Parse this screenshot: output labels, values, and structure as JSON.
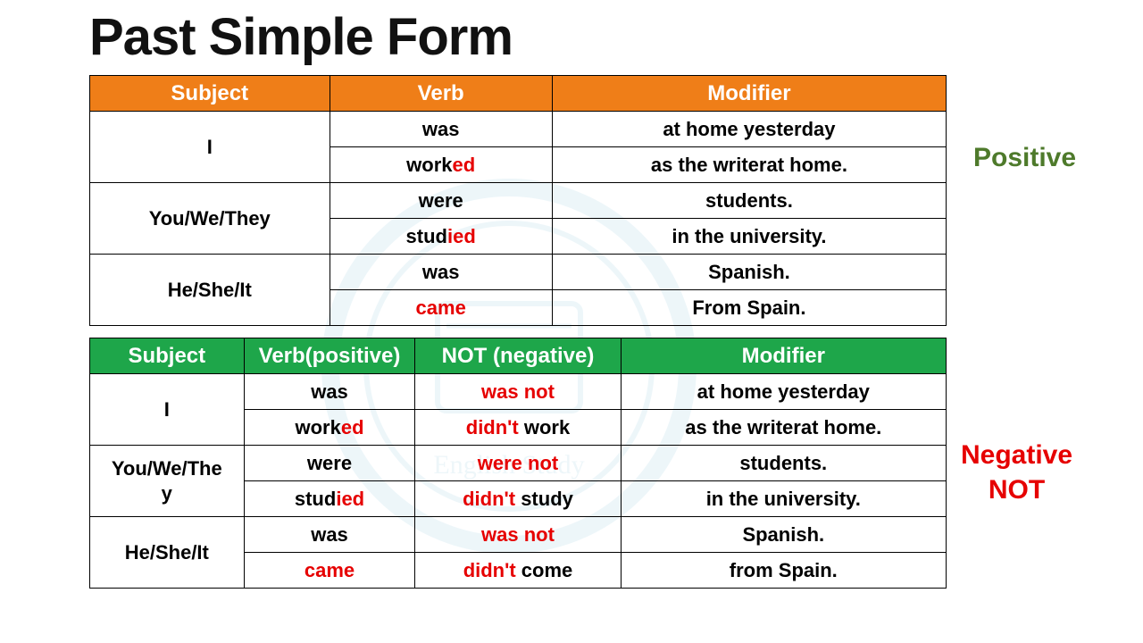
{
  "title": "Past Simple Form",
  "labels": {
    "positive": "Positive",
    "negative_line1": "Negative",
    "negative_line2": "NOT"
  },
  "colors": {
    "header_positive": "#ef7e18",
    "header_negative": "#1ea64a",
    "highlight": "#e60000",
    "positive_label": "#4e7a2b",
    "negative_label": "#e60000",
    "border": "#000000",
    "background": "#ffffff"
  },
  "positive_table": {
    "columns": [
      "Subject",
      "Verb",
      "Modifier"
    ],
    "col_widths_pct": [
      28,
      26,
      46
    ],
    "rows": [
      {
        "subject": "I",
        "verb_parts": [
          {
            "t": "was"
          }
        ],
        "modifier": "at home yesterday",
        "rowspan": 2
      },
      {
        "verb_parts": [
          {
            "t": "work"
          },
          {
            "t": "ed",
            "red": true
          }
        ],
        "modifier": "as the writerat home."
      },
      {
        "subject": "You/We/They",
        "verb_parts": [
          {
            "t": "were"
          }
        ],
        "modifier": "students.",
        "rowspan": 2
      },
      {
        "verb_parts": [
          {
            "t": "stud"
          },
          {
            "t": "ied",
            "red": true
          }
        ],
        "modifier": "in the university."
      },
      {
        "subject": "He/She/It",
        "verb_parts": [
          {
            "t": "was"
          }
        ],
        "modifier": "Spanish.",
        "rowspan": 2
      },
      {
        "verb_parts": [
          {
            "t": "came",
            "red": true
          }
        ],
        "modifier": "From Spain."
      }
    ]
  },
  "negative_table": {
    "columns": [
      "Subject",
      "Verb(positive)",
      "NOT (negative)",
      "Modifier"
    ],
    "col_widths_pct": [
      18,
      20,
      24,
      38
    ],
    "rows": [
      {
        "subject": "I",
        "verb_parts": [
          {
            "t": "was"
          }
        ],
        "not_parts": [
          {
            "t": "was not",
            "red": true
          }
        ],
        "modifier": "at home yesterday",
        "rowspan": 2
      },
      {
        "verb_parts": [
          {
            "t": "work"
          },
          {
            "t": "ed",
            "red": true
          }
        ],
        "not_parts": [
          {
            "t": "didn't",
            "red": true
          },
          {
            "t": " work"
          }
        ],
        "modifier": "as the writerat home."
      },
      {
        "subject": "You/We/They",
        "verb_parts": [
          {
            "t": "were"
          }
        ],
        "not_parts": [
          {
            "t": "were not",
            "red": true
          }
        ],
        "modifier": "students.",
        "rowspan": 2,
        "subject_wrap": true
      },
      {
        "verb_parts": [
          {
            "t": "stud"
          },
          {
            "t": "ied",
            "red": true
          }
        ],
        "not_parts": [
          {
            "t": "didn't",
            "red": true
          },
          {
            "t": " study"
          }
        ],
        "modifier": "in the university."
      },
      {
        "subject": "He/She/It",
        "verb_parts": [
          {
            "t": "was"
          }
        ],
        "not_parts": [
          {
            "t": "was not",
            "red": true
          }
        ],
        "modifier": "Spanish.",
        "rowspan": 2
      },
      {
        "verb_parts": [
          {
            "t": "came",
            "red": true
          }
        ],
        "not_parts": [
          {
            "t": "didn't",
            "red": true
          },
          {
            "t": " come"
          }
        ],
        "modifier": "from Spain."
      }
    ]
  }
}
